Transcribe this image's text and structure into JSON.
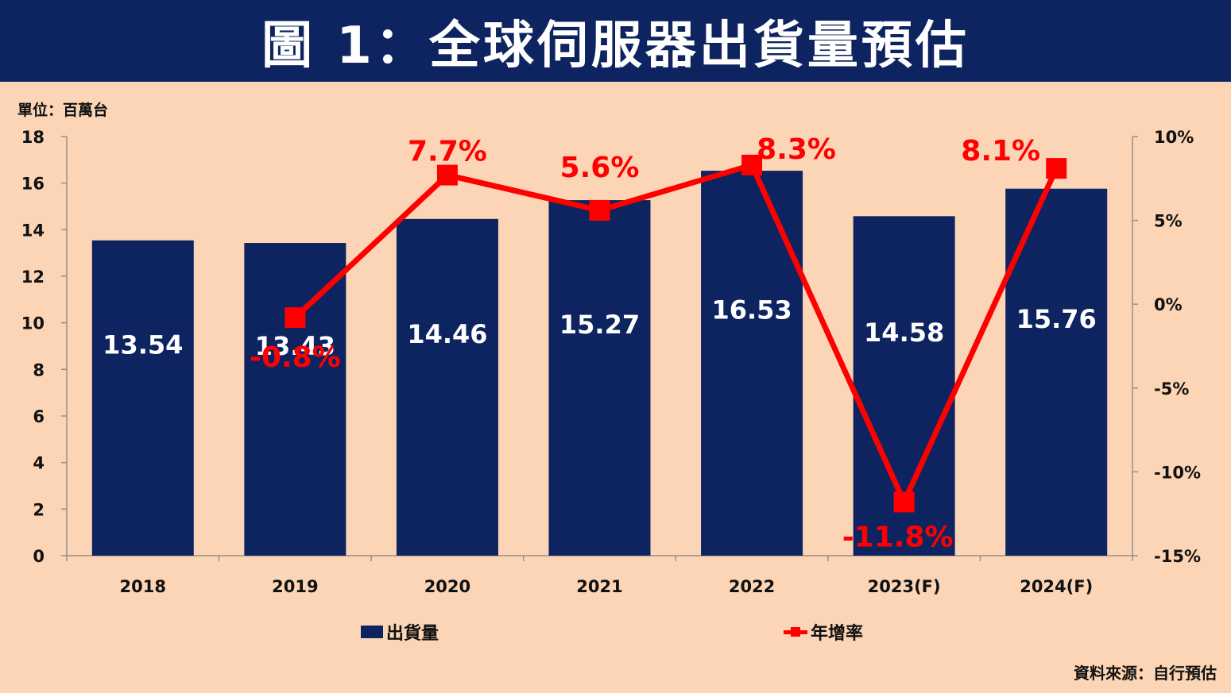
{
  "header": {
    "title": "圖 1：全球伺服器出貨量預估"
  },
  "unit_label": "單位：百萬台",
  "source_label": "資料來源：自行預估",
  "legend": {
    "bar_label": "出貨量",
    "line_label": "年增率"
  },
  "colors": {
    "banner": "#0e2461",
    "bar": "#0e2461",
    "line": "#ff0000",
    "background": "#fbd5b5"
  },
  "chart_data": {
    "type": "bar",
    "categories": [
      "2018",
      "2019",
      "2020",
      "2021",
      "2022",
      "2023(F)",
      "2024(F)"
    ],
    "series": [
      {
        "name": "出貨量",
        "type": "bar",
        "axis": "left",
        "values": [
          13.54,
          13.43,
          14.46,
          15.27,
          16.53,
          14.58,
          15.76
        ],
        "labels": [
          "13.54",
          "13.43",
          "14.46",
          "15.27",
          "16.53",
          "14.58",
          "15.76"
        ]
      },
      {
        "name": "年增率",
        "type": "line",
        "axis": "right",
        "values": [
          null,
          -0.8,
          7.7,
          5.6,
          8.3,
          -11.8,
          8.1
        ],
        "labels": [
          "",
          "-0.8%",
          "7.7%",
          "5.6%",
          "8.3%",
          "-11.8%",
          "8.1%"
        ]
      }
    ],
    "y_left": {
      "min": 0,
      "max": 18,
      "ticks": [
        "0",
        "2",
        "4",
        "6",
        "8",
        "10",
        "12",
        "14",
        "16",
        "18"
      ]
    },
    "y_right": {
      "min": -15,
      "max": 10,
      "ticks": [
        "-15%",
        "-10%",
        "-5%",
        "0%",
        "5%",
        "10%"
      ]
    },
    "grid": false,
    "legend_position": "bottom"
  }
}
